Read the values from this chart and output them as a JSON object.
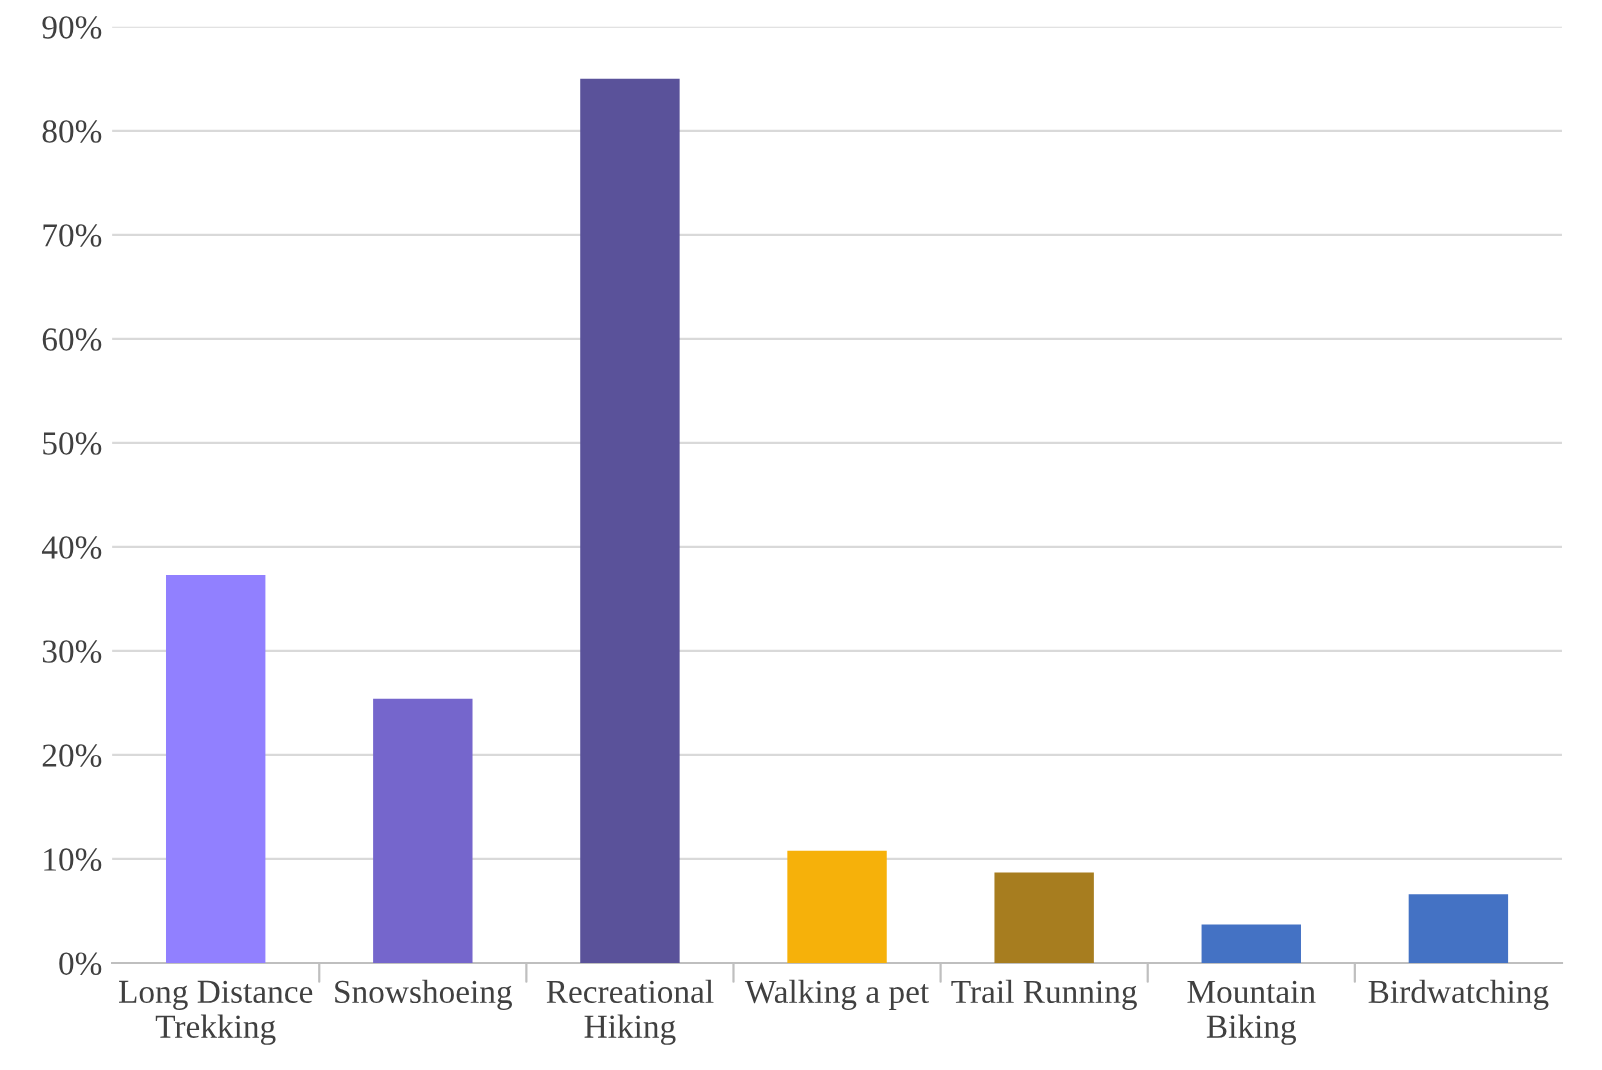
{
  "chart_data": {
    "type": "bar",
    "categories": [
      "Long Distance\nTrekking",
      "Snowshoeing",
      "Recreational\nHiking",
      "Walking a pet",
      "Trail Running",
      "Mountain\nBiking",
      "Birdwatching"
    ],
    "values": [
      37.3,
      25.4,
      85,
      10.8,
      8.7,
      3.7,
      6.6
    ],
    "colors": [
      "#9180ff",
      "#7566cc",
      "#5a529a",
      "#f6b10a",
      "#a77d1f",
      "#4472c4",
      "#4472c4"
    ],
    "ylim": [
      0,
      90
    ],
    "yticks": [
      {
        "value": 0,
        "label": "0%"
      },
      {
        "value": 10,
        "label": "10%"
      },
      {
        "value": 20,
        "label": "20%"
      },
      {
        "value": 30,
        "label": "30%"
      },
      {
        "value": 40,
        "label": "40%"
      },
      {
        "value": 50,
        "label": "50%"
      },
      {
        "value": 60,
        "label": "60%"
      },
      {
        "value": 70,
        "label": "70%"
      },
      {
        "value": 80,
        "label": "80%"
      },
      {
        "value": 90,
        "label": "90%"
      }
    ],
    "grid": "y",
    "legend": false
  }
}
